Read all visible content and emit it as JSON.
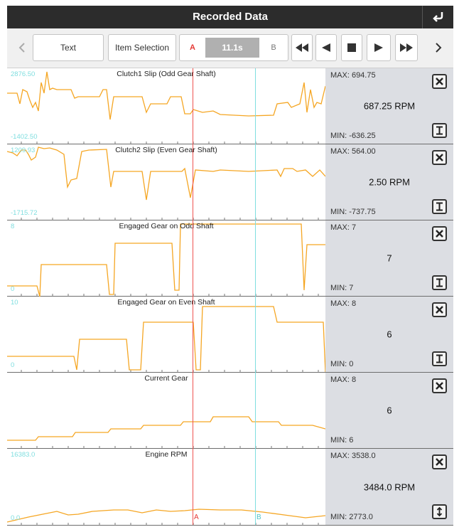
{
  "window": {
    "title": "Recorded Data"
  },
  "toolbar": {
    "text_label": "Text",
    "item_selection_label": "Item Selection",
    "marker_a_label": "A",
    "marker_b_label": "B",
    "time_value": "11.1s"
  },
  "markers": {
    "a_label": "A",
    "b_label": "B"
  },
  "colors": {
    "trace": "#f5a623",
    "marker_a": "#ef5350",
    "marker_b": "#7fdedf",
    "titlebar": "#2c2c2c",
    "info_panel": "#dcdee3"
  },
  "rows": [
    {
      "title": "Clutch1 Slip (Odd Gear Shaft)",
      "y_max": "2876.50",
      "y_min": "-1402.50",
      "max": "MAX: 694.75",
      "current": "687.25 RPM",
      "min": "MIN: -636.25",
      "scale_icon": "text-cursor-icon"
    },
    {
      "title": "Clutch2 Slip (Even Gear Shaft)",
      "y_max": "1209.93",
      "y_min": "-1715.72",
      "max": "MAX: 564.00",
      "current": "2.50 RPM",
      "min": "MIN: -737.75",
      "scale_icon": "text-cursor-icon"
    },
    {
      "title": "Engaged Gear on Odd Shaft",
      "y_max": "8",
      "y_min": "0",
      "max": "MAX: 7",
      "current": "7",
      "min": "MIN: 7",
      "scale_icon": "text-cursor-icon"
    },
    {
      "title": "Engaged Gear on Even Shaft",
      "y_max": "10",
      "y_min": "0",
      "max": "MAX: 8",
      "current": "6",
      "min": "MIN: 0",
      "scale_icon": "text-cursor-icon"
    },
    {
      "title": "Current Gear",
      "y_max": "",
      "y_min": "",
      "max": "MAX: 8",
      "current": "6",
      "min": "MIN: 6",
      "scale_icon": ""
    },
    {
      "title": "Engine RPM",
      "y_max": "16383.0",
      "y_min": "0.0",
      "max": "MAX: 3538.0",
      "current": "3484.0 RPM",
      "min": "MIN: 2773.0",
      "scale_icon": "vertical-resize-icon"
    }
  ]
}
